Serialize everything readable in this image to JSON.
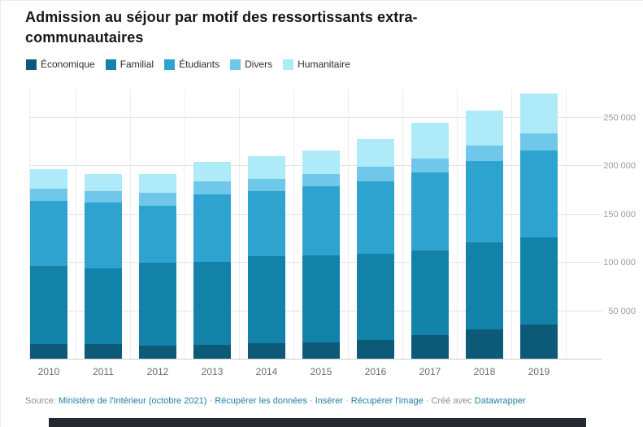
{
  "chart_data": {
    "type": "bar",
    "stacked": true,
    "title": "Admission au séjour par motif des ressortissants extra-communautaires",
    "categories": [
      "2010",
      "2011",
      "2012",
      "2013",
      "2014",
      "2015",
      "2016",
      "2017",
      "2018",
      "2019"
    ],
    "series": [
      {
        "name": "Économique",
        "color": "#0c5a77",
        "values": [
          16000,
          16000,
          14000,
          15000,
          17000,
          18000,
          20000,
          25000,
          31000,
          36000
        ]
      },
      {
        "name": "Familial",
        "color": "#1282a8",
        "values": [
          81000,
          78000,
          86000,
          86000,
          90000,
          90000,
          89000,
          88000,
          90000,
          90000
        ]
      },
      {
        "name": "Étudiants",
        "color": "#2ea3d0",
        "values": [
          67000,
          68000,
          59000,
          70000,
          67000,
          71000,
          75000,
          80000,
          84000,
          90000
        ]
      },
      {
        "name": "Divers",
        "color": "#6fc7ea",
        "values": [
          13000,
          12000,
          13000,
          13000,
          13000,
          13000,
          15000,
          15000,
          16000,
          18000
        ]
      },
      {
        "name": "Humanitaire",
        "color": "#aeeaf8",
        "values": [
          20000,
          18000,
          20000,
          20000,
          23000,
          24000,
          29000,
          37000,
          36000,
          41000
        ]
      }
    ],
    "xlabel": "",
    "ylabel": "",
    "ylim": [
      0,
      280000
    ],
    "yticks": [
      {
        "value": 50000,
        "label": "50 000"
      },
      {
        "value": 100000,
        "label": "100 000"
      },
      {
        "value": 150000,
        "label": "150 000"
      },
      {
        "value": 200000,
        "label": "200 000"
      },
      {
        "value": 250000,
        "label": "250 000"
      }
    ],
    "grid": true,
    "legend_position": "top"
  },
  "footer": {
    "parts": [
      {
        "text": "Source: ",
        "link": false,
        "name": "footer-source-label"
      },
      {
        "text": "Ministère de l'Intérieur (octobre 2021)",
        "link": true,
        "name": "source-link"
      },
      {
        "text": " · ",
        "link": false,
        "name": "footer-separator"
      },
      {
        "text": "Récupérer les données",
        "link": true,
        "name": "get-data-link"
      },
      {
        "text": " · ",
        "link": false,
        "name": "footer-separator"
      },
      {
        "text": "Insérer",
        "link": true,
        "name": "embed-link"
      },
      {
        "text": " · ",
        "link": false,
        "name": "footer-separator"
      },
      {
        "text": "Récupérer l'image",
        "link": true,
        "name": "get-image-link"
      },
      {
        "text": " · Créé avec ",
        "link": false,
        "name": "footer-created-with-label"
      },
      {
        "text": "Datawrapper",
        "link": true,
        "name": "datawrapper-link"
      }
    ]
  }
}
